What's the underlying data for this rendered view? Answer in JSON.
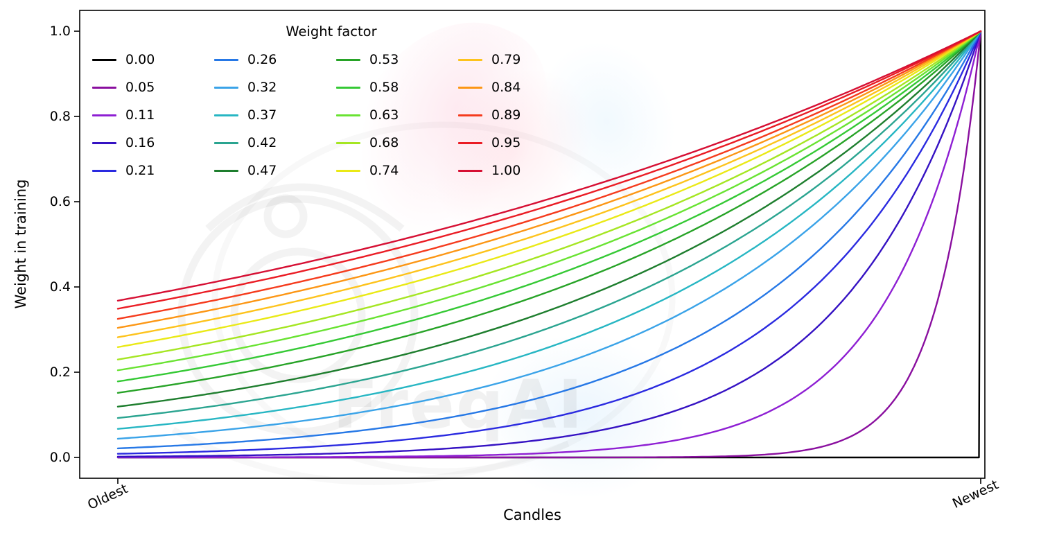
{
  "watermark": {
    "text": "FreqAI"
  },
  "chart_data": {
    "type": "line",
    "title": "",
    "xlabel": "Candles",
    "ylabel": "Weight in training",
    "x_tick_labels": [
      "Oldest",
      "Newest"
    ],
    "y_ticks": [
      0.0,
      0.2,
      0.4,
      0.6,
      0.8,
      1.0
    ],
    "xlim": [
      0,
      1
    ],
    "ylim": [
      -0.05,
      1.05
    ],
    "grid": false,
    "legend_title": "Weight factor",
    "legend_position": "upper-left",
    "legend_columns": 4,
    "curve_formula": "weight(x) = exp(-(1 - x) / factor) for factor > 0; factor 0.00 is 0 everywhere except 1 at the newest candle; all curves end at (Newest, 1.0)",
    "series": [
      {
        "name": "0.00",
        "factor": 0.0,
        "color": "#000000",
        "weight_at_oldest": 0.0
      },
      {
        "name": "0.05",
        "factor": 0.05,
        "color": "#8a0f9f",
        "weight_at_oldest": 0.0
      },
      {
        "name": "0.11",
        "factor": 0.11,
        "color": "#8e1fd3",
        "weight_at_oldest": 0.0001
      },
      {
        "name": "0.16",
        "factor": 0.16,
        "color": "#3512c3",
        "weight_at_oldest": 0.002
      },
      {
        "name": "0.21",
        "factor": 0.21,
        "color": "#2a2ae0",
        "weight_at_oldest": 0.009
      },
      {
        "name": "0.26",
        "factor": 0.26,
        "color": "#2678e6",
        "weight_at_oldest": 0.021
      },
      {
        "name": "0.32",
        "factor": 0.32,
        "color": "#3aa3e8",
        "weight_at_oldest": 0.044
      },
      {
        "name": "0.37",
        "factor": 0.37,
        "color": "#27b6c3",
        "weight_at_oldest": 0.067
      },
      {
        "name": "0.42",
        "factor": 0.42,
        "color": "#2aa490",
        "weight_at_oldest": 0.092
      },
      {
        "name": "0.47",
        "factor": 0.47,
        "color": "#1e7e2e",
        "weight_at_oldest": 0.119
      },
      {
        "name": "0.53",
        "factor": 0.53,
        "color": "#27a327",
        "weight_at_oldest": 0.152
      },
      {
        "name": "0.58",
        "factor": 0.58,
        "color": "#35c935",
        "weight_at_oldest": 0.178
      },
      {
        "name": "0.63",
        "factor": 0.63,
        "color": "#69e332",
        "weight_at_oldest": 0.204
      },
      {
        "name": "0.68",
        "factor": 0.68,
        "color": "#a5e622",
        "weight_at_oldest": 0.23
      },
      {
        "name": "0.74",
        "factor": 0.74,
        "color": "#eae916",
        "weight_at_oldest": 0.259
      },
      {
        "name": "0.79",
        "factor": 0.79,
        "color": "#fdc31c",
        "weight_at_oldest": 0.282
      },
      {
        "name": "0.84",
        "factor": 0.84,
        "color": "#fc9614",
        "weight_at_oldest": 0.304
      },
      {
        "name": "0.89",
        "factor": 0.89,
        "color": "#f53b1d",
        "weight_at_oldest": 0.325
      },
      {
        "name": "0.95",
        "factor": 0.95,
        "color": "#ea1c24",
        "weight_at_oldest": 0.349
      },
      {
        "name": "1.00",
        "factor": 1.0,
        "color": "#d60f33",
        "weight_at_oldest": 0.368
      }
    ]
  }
}
